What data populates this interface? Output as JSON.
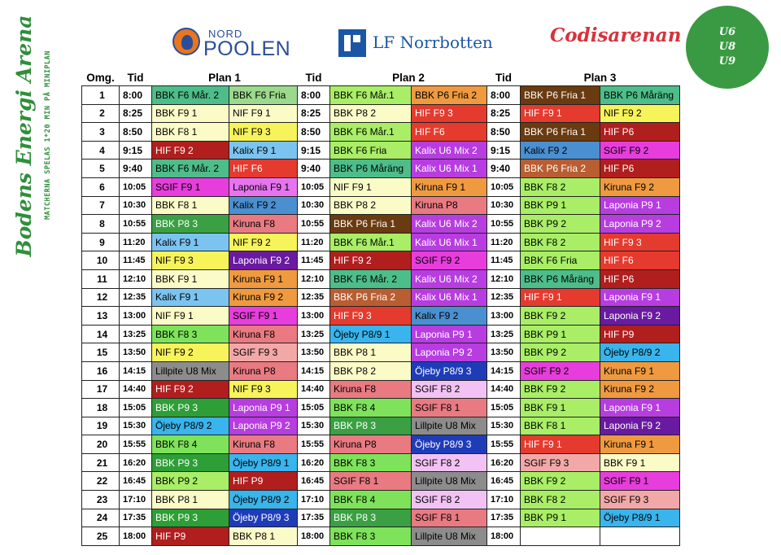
{
  "side": {
    "title": "Bodens Energi Arena",
    "subtitle": "MATCHERNA SPELAS 1*20 MIN PÅ MINIPLAN"
  },
  "logos": {
    "nord_top": "NORD",
    "nord_bottom": "POOLEN",
    "lf": "LF Norrbotten",
    "cod": "Codisarenan"
  },
  "badge": [
    "U6",
    "U8",
    "U9"
  ],
  "table": {
    "headers": {
      "omg": "Omg.",
      "tid": "Tid",
      "plan1": "Plan 1",
      "plan2": "Plan 2",
      "plan3": "Plan 3"
    },
    "colors": {
      "bbk": "#4dbd8a",
      "fria": "#9bd98c",
      "dgreen": "#3aa043",
      "lgreen": "#a9ee66",
      "bgreen": "#7ee35a",
      "mgreen": "#2e9e36",
      "pale": "#fbfbc8",
      "ylw": "#f7f35a",
      "lime": "#e6f08c",
      "lblue": "#7cc4f0",
      "blue": "#4a8fd0",
      "navy": "#1f3cb8",
      "cyan": "#39b4ec",
      "purple": "#b73de0",
      "dpurple": "#6a1aa0",
      "pink": "#e774ee",
      "magenta": "#e73ddc",
      "lilac": "#f2c2f4",
      "salmon": "#e97a82",
      "rose": "#f3a8a8",
      "red": "#e53a2e",
      "dred": "#b11e1e",
      "orange": "#ef9a40",
      "brown": "#6a3a10",
      "lbrown": "#b85e32",
      "gray": "#8c8c8c",
      "white": "#ffffff"
    },
    "rows": [
      {
        "omg": "1",
        "t1": "8:00",
        "c1": "BBK F6 Mår. 2",
        "k1": "bbk",
        "d1": "BBK F6 Fria",
        "e1": "fria",
        "t2": "8:00",
        "c2": "BBK F6 Mår.1",
        "k2": "lgreen",
        "d2": "BBK P6 Fria 2",
        "e2": "orange",
        "t3": "8:00",
        "c3": "BBK P6 Fria 1",
        "k3": "brown",
        "d3": "BBK P6 Måräng",
        "e3": "bbk"
      },
      {
        "omg": "2",
        "t1": "8:25",
        "c1": "BBK F9 1",
        "k1": "pale",
        "d1": "NIF F9 1",
        "e1": "pale",
        "t2": "8:25",
        "c2": "BBK P8 2",
        "k2": "pale",
        "d2": "HIF F9 3",
        "e2": "red",
        "t3": "8:25",
        "c3": "HIF F9 1",
        "k3": "red",
        "d3": "NIF F9 2",
        "e3": "ylw"
      },
      {
        "omg": "3",
        "t1": "8:50",
        "c1": "BBK F8 1",
        "k1": "pale",
        "d1": "NIF F9 3",
        "e1": "ylw",
        "t2": "8:50",
        "c2": "BBK F6 Mår.1",
        "k2": "lgreen",
        "d2": "HIF F6",
        "e2": "red",
        "t3": "8:50",
        "c3": "BBK P6 Fria 1",
        "k3": "brown",
        "d3": "HIF P6",
        "e3": "dred"
      },
      {
        "omg": "4",
        "t1": "9:15",
        "c1": "HIF F9 2",
        "k1": "dred",
        "d1": "Kalix F9 1",
        "e1": "lblue",
        "t2": "9:15",
        "c2": "BBK F6 Fria",
        "k2": "lgreen",
        "d2": "Kalix U6 Mix 2",
        "e2": "purple",
        "t3": "9:15",
        "c3": "Kalix F9 2",
        "k3": "blue",
        "d3": "SGIF F9 2",
        "e3": "magenta"
      },
      {
        "omg": "5",
        "t1": "9:40",
        "c1": "BBK F6 Mår. 2",
        "k1": "bbk",
        "d1": "HIF F6",
        "e1": "red",
        "t2": "9:40",
        "c2": "BBK P6 Måräng",
        "k2": "bbk",
        "d2": "Kalix U6 Mix 1",
        "e2": "purple",
        "t3": "9:40",
        "c3": "BBK P6 Fria 2",
        "k3": "lbrown",
        "d3": "HIF P6",
        "e3": "dred"
      },
      {
        "omg": "6",
        "t1": "10:05",
        "c1": "SGIF F9 1",
        "k1": "magenta",
        "d1": "Laponia F9 1",
        "e1": "pink",
        "t2": "10:05",
        "c2": "NIF F9 1",
        "k2": "pale",
        "d2": "Kiruna F9 1",
        "e2": "orange",
        "t3": "10:05",
        "c3": "BBK F8 2",
        "k3": "lgreen",
        "d3": "Kiruna F9 2",
        "e3": "orange"
      },
      {
        "omg": "7",
        "t1": "10:30",
        "c1": "BBK F8 1",
        "k1": "pale",
        "d1": "Kalix F9 2",
        "e1": "blue",
        "t2": "10:30",
        "c2": "BBK P8 2",
        "k2": "pale",
        "d2": "Kiruna P8",
        "e2": "salmon",
        "t3": "10:30",
        "c3": "BBK P9 1",
        "k3": "lgreen",
        "d3": "Laponia P9 1",
        "e3": "purple"
      },
      {
        "omg": "8",
        "t1": "10:55",
        "c1": "BBK P8 3",
        "k1": "dgreen",
        "d1": "Kiruna F8",
        "e1": "salmon",
        "t2": "10:55",
        "c2": "BBK P6 Fria 1",
        "k2": "brown",
        "d2": "Kalix U6 Mix 2",
        "e2": "purple",
        "t3": "10:55",
        "c3": "BBK P9 2",
        "k3": "lgreen",
        "d3": "Laponia P9 2",
        "e3": "purple"
      },
      {
        "omg": "9",
        "t1": "11:20",
        "c1": "Kalix F9 1",
        "k1": "lblue",
        "d1": "NIF F9 2",
        "e1": "ylw",
        "t2": "11:20",
        "c2": "BBK F6 Mår.1",
        "k2": "lgreen",
        "d2": "Kalix U6 Mix 1",
        "e2": "purple",
        "t3": "11:20",
        "c3": "BBK F8 2",
        "k3": "lgreen",
        "d3": "HIF F9 3",
        "e3": "red"
      },
      {
        "omg": "10",
        "t1": "11:45",
        "c1": "NIF F9 3",
        "k1": "ylw",
        "d1": "Laponia F9 2",
        "e1": "dpurple",
        "t2": "11:45",
        "c2": "HIF F9 2",
        "k2": "dred",
        "d2": "SGIF F9 2",
        "e2": "magenta",
        "t3": "11:45",
        "c3": "BBK F6 Fria",
        "k3": "lgreen",
        "d3": "HIF F6",
        "e3": "red"
      },
      {
        "omg": "11",
        "t1": "12:10",
        "c1": "BBK F9 1",
        "k1": "pale",
        "d1": "Kiruna F9 1",
        "e1": "orange",
        "t2": "12:10",
        "c2": "BBK F6 Mår. 2",
        "k2": "bbk",
        "d2": "Kalix U6 Mix 2",
        "e2": "purple",
        "t3": "12:10",
        "c3": "BBK P6 Måräng",
        "k3": "bbk",
        "d3": "HIF P6",
        "e3": "dred"
      },
      {
        "omg": "12",
        "t1": "12:35",
        "c1": "Kalix F9 1",
        "k1": "lblue",
        "d1": "Kiruna F9 2",
        "e1": "orange",
        "t2": "12:35",
        "c2": "BBK P6 Fria 2",
        "k2": "lbrown",
        "d2": "Kalix U6 Mix 1",
        "e2": "purple",
        "t3": "12:35",
        "c3": "HIF F9 1",
        "k3": "red",
        "d3": "Laponia F9 1",
        "e3": "purple"
      },
      {
        "omg": "13",
        "t1": "13:00",
        "c1": "NIF F9 1",
        "k1": "pale",
        "d1": "SGIF F9 1",
        "e1": "magenta",
        "t2": "13:00",
        "c2": "HIF F9 3",
        "k2": "red",
        "d2": "Kalix F9 2",
        "e2": "blue",
        "t3": "13:00",
        "c3": "BBK F9 2",
        "k3": "lgreen",
        "d3": "Laponia F9 2",
        "e3": "dpurple"
      },
      {
        "omg": "14",
        "t1": "13:25",
        "c1": "BBK F8 3",
        "k1": "bgreen",
        "d1": "Kiruna F8",
        "e1": "salmon",
        "t2": "13:25",
        "c2": "Öjeby P8/9 1",
        "k2": "cyan",
        "d2": "Laponia P9 1",
        "e2": "purple",
        "t3": "13:25",
        "c3": "BBK P9 1",
        "k3": "lgreen",
        "d3": "HIF P9",
        "e3": "dred"
      },
      {
        "omg": "15",
        "t1": "13:50",
        "c1": "NIF F9 2",
        "k1": "ylw",
        "d1": "SGIF F9 3",
        "e1": "rose",
        "t2": "13:50",
        "c2": "BBK P8 1",
        "k2": "pale",
        "d2": "Laponia P9 2",
        "e2": "purple",
        "t3": "13:50",
        "c3": "BBK P9 2",
        "k3": "lgreen",
        "d3": "Öjeby P8/9 2",
        "e3": "cyan"
      },
      {
        "omg": "16",
        "t1": "14:15",
        "c1": "Lillpite U8 Mix",
        "k1": "gray",
        "d1": "Kiruna P8",
        "e1": "salmon",
        "t2": "14:15",
        "c2": "BBK P8 2",
        "k2": "pale",
        "d2": "Öjeby P8/9 3",
        "e2": "navy",
        "t3": "14:15",
        "c3": "SGIF F9 2",
        "k3": "magenta",
        "d3": "Kiruna F9 1",
        "e3": "orange"
      },
      {
        "omg": "17",
        "t1": "14:40",
        "c1": "HIF F9 2",
        "k1": "dred",
        "d1": "NIF F9 3",
        "e1": "ylw",
        "t2": "14:40",
        "c2": "Kiruna F8",
        "k2": "salmon",
        "d2": "SGIF F8 2",
        "e2": "lilac",
        "t3": "14:40",
        "c3": "BBK F9 2",
        "k3": "lgreen",
        "d3": "Kiruna F9 2",
        "e3": "orange"
      },
      {
        "omg": "18",
        "t1": "15:05",
        "c1": "BBK P9 3",
        "k1": "mgreen",
        "d1": "Laponia P9 1",
        "e1": "purple",
        "t2": "15:05",
        "c2": "BBK F8 4",
        "k2": "bgreen",
        "d2": "SGIF F8 1",
        "e2": "salmon",
        "t3": "15:05",
        "c3": "BBK F9 1",
        "k3": "lgreen",
        "d3": "Laponia F9 1",
        "e3": "purple"
      },
      {
        "omg": "19",
        "t1": "15:30",
        "c1": "Öjeby P8/9 2",
        "k1": "cyan",
        "d1": "Laponia P9 2",
        "e1": "purple",
        "t2": "15:30",
        "c2": "BBK P8 3",
        "k2": "dgreen",
        "d2": "Lillpite U8 Mix",
        "e2": "gray",
        "t3": "15:30",
        "c3": "BBK F8 1",
        "k3": "lgreen",
        "d3": "Laponia F9 2",
        "e3": "dpurple"
      },
      {
        "omg": "20",
        "t1": "15:55",
        "c1": "BBK F8 4",
        "k1": "bgreen",
        "d1": "Kiruna F8",
        "e1": "salmon",
        "t2": "15:55",
        "c2": "Kiruna P8",
        "k2": "salmon",
        "d2": "Öjeby P8/9 3",
        "e2": "navy",
        "t3": "15:55",
        "c3": "HIF F9 1",
        "k3": "red",
        "d3": "Kiruna F9 1",
        "e3": "orange"
      },
      {
        "omg": "21",
        "t1": "16:20",
        "c1": "BBK P9 3",
        "k1": "mgreen",
        "d1": "Öjeby P8/9 1",
        "e1": "cyan",
        "t2": "16:20",
        "c2": "BBK F8 3",
        "k2": "bgreen",
        "d2": "SGIF F8 2",
        "e2": "lilac",
        "t3": "16:20",
        "c3": "SGIF F9 3",
        "k3": "rose",
        "d3": "BBK F9 1",
        "e3": "pale"
      },
      {
        "omg": "22",
        "t1": "16:45",
        "c1": "BBK P9 2",
        "k1": "lgreen",
        "d1": "HIF P9",
        "e1": "dred",
        "t2": "16:45",
        "c2": "SGIF F8 1",
        "k2": "salmon",
        "d2": "Lillpite U8 Mix",
        "e2": "gray",
        "t3": "16:45",
        "c3": "BBK F9 2",
        "k3": "lgreen",
        "d3": "SGIF F9 1",
        "e3": "magenta"
      },
      {
        "omg": "23",
        "t1": "17:10",
        "c1": "BBK P8 1",
        "k1": "pale",
        "d1": "Öjeby P8/9 2",
        "e1": "cyan",
        "t2": "17:10",
        "c2": "BBK F8 4",
        "k2": "bgreen",
        "d2": "SGIF F8 2",
        "e2": "lilac",
        "t3": "17:10",
        "c3": "BBK F8 2",
        "k3": "lgreen",
        "d3": "SGIF F9 3",
        "e3": "rose"
      },
      {
        "omg": "24",
        "t1": "17:35",
        "c1": "BBK P9 3",
        "k1": "mgreen",
        "d1": "Öjeby P8/9 3",
        "e1": "navy",
        "t2": "17:35",
        "c2": "BBK P8 3",
        "k2": "dgreen",
        "d2": "SGIF F8 1",
        "e2": "salmon",
        "t3": "17:35",
        "c3": "BBK P9 1",
        "k3": "lgreen",
        "d3": "Öjeby P8/9 1",
        "e3": "cyan"
      },
      {
        "omg": "25",
        "t1": "18:00",
        "c1": "HIF P9",
        "k1": "dred",
        "d1": "BBK P8 1",
        "e1": "pale",
        "t2": "18:00",
        "c2": "BBK F8 3",
        "k2": "bgreen",
        "d2": "Lillpite U8 Mix",
        "e2": "gray",
        "t3": "18:00",
        "c3": "",
        "k3": "white",
        "d3": "",
        "e3": "white"
      }
    ]
  }
}
